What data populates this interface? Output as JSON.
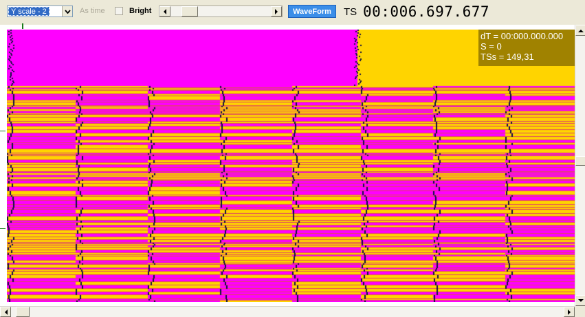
{
  "toolbar": {
    "y_scale": {
      "selected": "Y scale - 2"
    },
    "as_time_label": "As time",
    "bright_label": "Bright",
    "bright_checked": false,
    "waveform_button": "WaveForm",
    "ts_label": "TS",
    "ts_value": "00:006.697.677"
  },
  "info": {
    "line1": "dT = 00:000.000.000",
    "line2": "S = 0",
    "line3": "TSs = 149,31"
  },
  "colors": {
    "signal_high": "#ff00ff",
    "signal_low": "#ffd400",
    "separator": "#e04860",
    "edge": "#101040",
    "overlay_bg": "#a08200",
    "button_accent": "#3b8ee8"
  },
  "icons": {
    "combo_dropdown": "chevron-down-icon",
    "scroll_left": "arrow-left-icon",
    "scroll_right": "arrow-right-icon",
    "scroll_up": "arrow-up-icon",
    "scroll_down": "arrow-down-icon"
  }
}
